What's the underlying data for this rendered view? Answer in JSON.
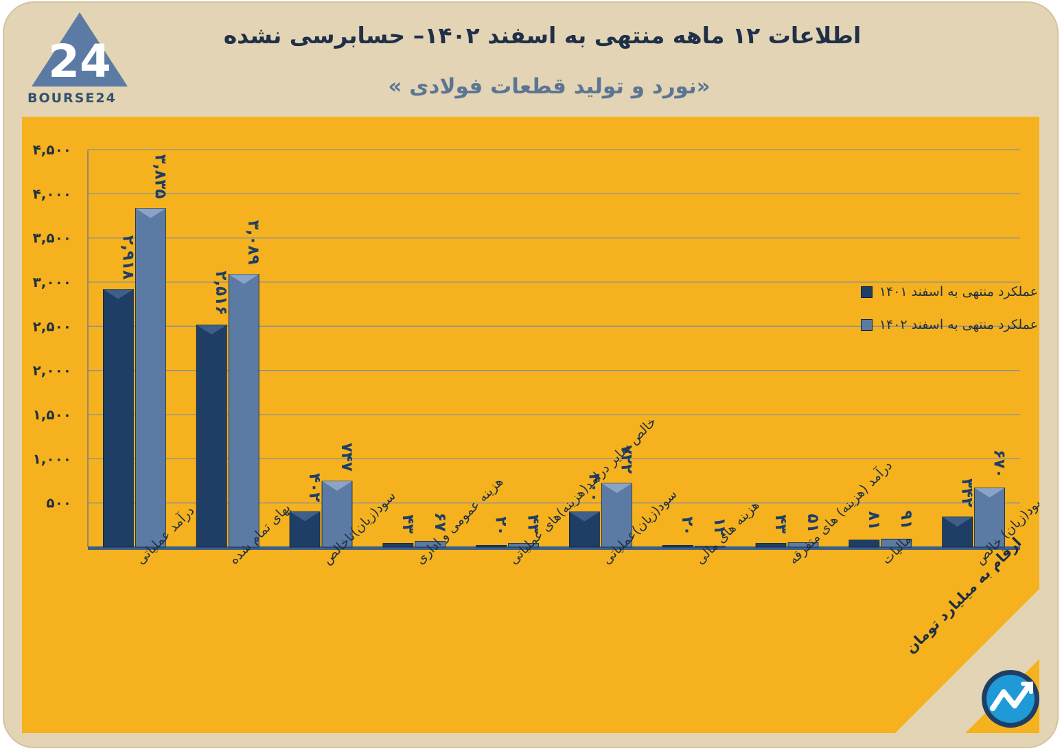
{
  "header": {
    "title": "اطلاعات ۱۲ ماهه منتهی به اسفند ۱۴۰۲– حسابرسی نشده",
    "subtitle": "«نورد و تولید قطعات فولادی »",
    "logo_text": "BOURSE24",
    "logo_mark": "24",
    "units_note": "ارقام به میلیارد تومان"
  },
  "colors": {
    "frame": "#e2d4b4",
    "panel": "#f5b21e",
    "series_1401": "#1e3e66",
    "series_1402": "#5b7ba4",
    "label_text": "#1f3e66",
    "axis_text": "#1f2f42"
  },
  "chart_data": {
    "type": "bar",
    "title": "اطلاعات ۱۲ ماهه منتهی به اسفند ۱۴۰۲– حسابرسی نشده",
    "ylim": [
      0,
      4500
    ],
    "yticks": [
      500,
      1000,
      1500,
      2000,
      2500,
      3000,
      3500,
      4000,
      4500
    ],
    "ytick_labels": [
      "۵۰۰",
      "۱,۰۰۰",
      "۱,۵۰۰",
      "۲,۰۰۰",
      "۲,۵۰۰",
      "۳,۰۰۰",
      "۳,۵۰۰",
      "۴,۰۰۰",
      "۴,۵۰۰"
    ],
    "grid": true,
    "legend_position": "top-right",
    "categories": [
      "درآمد عملیاتی",
      "بهای تمام شده",
      "سود(زیان)ناخالص",
      "هزینه عمومی و اداری",
      "خالص سایر درامد(هزینه)های عملیاتی",
      "سود(زیان)عملیاتی",
      "هزینه های مالی",
      "درآمد (هزینه) های متفرقه",
      "مالیات",
      "سود(زیان) خالص"
    ],
    "series": [
      {
        "name": "عملکرد منتهی به اسفند ۱۴۰۱",
        "values": [
          2918,
          2516,
          402,
          43,
          20,
          400,
          20,
          43,
          81,
          342
        ],
        "labels": [
          "۲,۹۱۸",
          "۲,۵۱۶",
          "۴۰۲",
          "۴۳",
          "۲۰",
          "۴۰۰",
          "۲۰",
          "۴۳",
          "۸۱",
          "۳۴۲"
        ]
      },
      {
        "name": "عملکرد منتهی به اسفند ۱۴۰۲",
        "values": [
          3835,
          3089,
          747,
          67,
          43,
          722,
          12,
          51,
          91,
          670
        ],
        "labels": [
          "۳,۸۳۵",
          "۳,۰۸۹",
          "۷۴۷",
          "۶۷",
          "۴۳",
          "۷۲۲",
          "۱۲",
          "۵۱",
          "۹۱",
          "۶۷۰"
        ]
      }
    ]
  }
}
